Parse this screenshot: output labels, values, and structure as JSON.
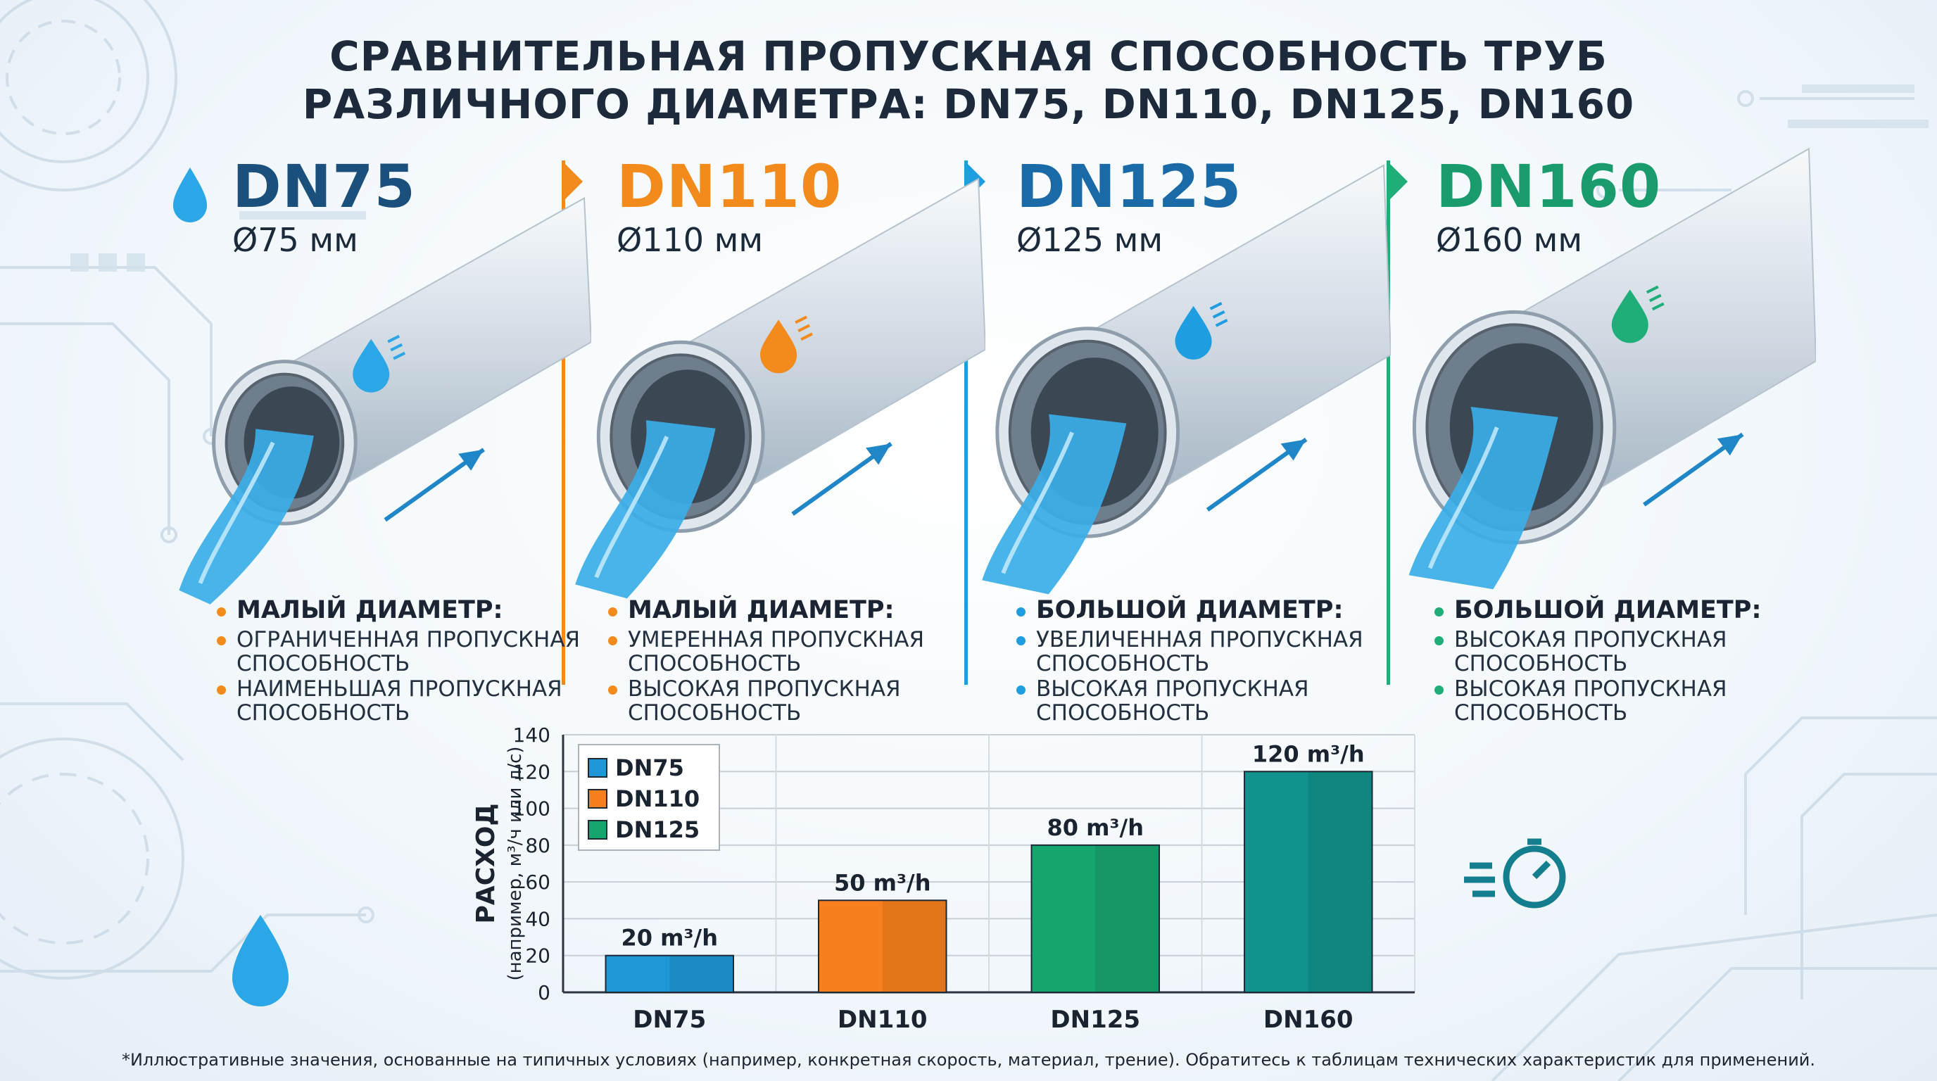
{
  "title": {
    "line1": "СРАВНИТЕЛЬНАЯ ПРОПУСКНАЯ СПОСОБНОСТЬ ТРУБ",
    "line2": "РАЗЛИЧНОГО ДИАМЕТРА: DN75, DN110, DN125, DN160"
  },
  "panels": [
    {
      "dn": "DN75",
      "diameter": "Ø75 мм",
      "color": "#1b4f7c",
      "accent": "#2ba6e6",
      "bullet_color": "#f28a1c",
      "head_bullet_color": "#f28a1c",
      "heading": "МАЛЫЙ ДИАМЕТР:",
      "items": [
        "ОГРАНИЧЕННАЯ ПРОПУСКНАЯ СПОСОБНОСТЬ",
        "НАИМЕНЬШАЯ ПРОПУСКНАЯ СПОСОБНОСТЬ"
      ],
      "icon": "water-drop-icon"
    },
    {
      "dn": "DN110",
      "diameter": "Ø110 мм",
      "color": "#f28a1c",
      "accent": "#f28a1c",
      "bullet_color": "#f28a1c",
      "head_bullet_color": "#f28a1c",
      "heading": "МАЛЫЙ ДИАМЕТР:",
      "items": [
        "УМЕРЕННАЯ ПРОПУСКНАЯ СПОСОБНОСТЬ",
        "ВЫСОКАЯ ПРОПУСКНАЯ СПОСОБНОСТЬ"
      ],
      "icon": "orange-drop-icon"
    },
    {
      "dn": "DN125",
      "diameter": "Ø125 мм",
      "color": "#1a6aa8",
      "accent": "#1e9ee0",
      "bullet_color": "#1e9ee0",
      "head_bullet_color": "#1e9ee0",
      "heading": "БОЛЬШОЙ ДИАМЕТР:",
      "items": [
        "УВЕЛИЧЕННАЯ ПРОПУСКНАЯ СПОСОБНОСТЬ",
        "ВЫСОКАЯ ПРОПУСКНАЯ СПОСОБНОСТЬ"
      ],
      "icon": "blue-drop-icon"
    },
    {
      "dn": "DN160",
      "diameter": "Ø160 мм",
      "color": "#1a9b6c",
      "accent": "#1fae78",
      "bullet_color": "#1fae78",
      "head_bullet_color": "#1fae78",
      "heading": "БОЛЬШОЙ ДИАМЕТР:",
      "items": [
        "ВЫСОКАЯ ПРОПУСКНАЯ СПОСОБНОСТЬ",
        "ВЫСОКАЯ ПРОПУСКНАЯ СПОСОБНОСТЬ"
      ],
      "icon": "speed-drop-icon"
    }
  ],
  "chart_data": {
    "type": "bar",
    "categories": [
      "DN75",
      "DN110",
      "DN125",
      "DN160"
    ],
    "values": [
      20,
      50,
      80,
      120
    ],
    "data_labels": [
      "20 m³/h",
      "50 m³/h",
      "80 m³/h",
      "120 m³/h"
    ],
    "colors": [
      "#1f97d6",
      "#f7801e",
      "#17a56e",
      "#12928c"
    ],
    "title": "",
    "xlabel": "",
    "ylabel": "РАСХОД",
    "ylabel_sub": "(например, м³/ч или л/с)",
    "ylim": [
      0,
      140
    ],
    "yticks": [
      0,
      20,
      40,
      60,
      80,
      100,
      120,
      140
    ],
    "grid": true,
    "legend_position": "top-left",
    "legend": [
      {
        "name": "DN75",
        "color": "#1f97d6"
      },
      {
        "name": "DN110",
        "color": "#f7801e"
      },
      {
        "name": "DN125",
        "color": "#17a56e"
      }
    ]
  },
  "footnote": "*Иллюстративные значения, основанные на типичных условиях (например, конкретная скорость, материал, трение). Обратитесь к таблицам технических характеристик для применений."
}
